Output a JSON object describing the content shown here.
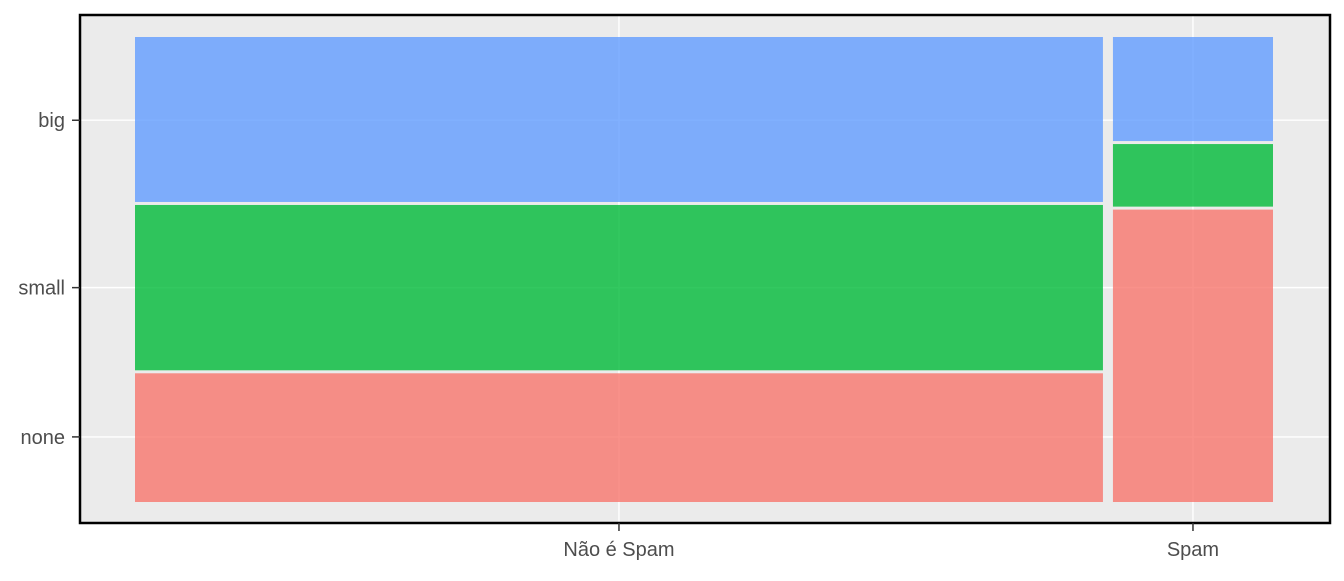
{
  "chart_data": {
    "type": "mosaic",
    "title": "",
    "xlabel": "",
    "ylabel": "",
    "x_categories": [
      "Não é Spam",
      "Spam"
    ],
    "x_proportions": [
      0.8581,
      0.1419
    ],
    "y_tick_labels": [
      "none",
      "small",
      "big"
    ],
    "segments": [
      {
        "name": "none",
        "color": "#F8766D",
        "values": [
          0.28,
          0.632
        ]
      },
      {
        "name": "small",
        "color": "#00BA38",
        "values": [
          0.362,
          0.141
        ]
      },
      {
        "name": "big",
        "color": "#619CFF",
        "values": [
          0.358,
          0.227
        ]
      }
    ],
    "segment_opacity": 0.8,
    "panel_background": "#ebebeb",
    "grid": true,
    "legend": "none"
  }
}
